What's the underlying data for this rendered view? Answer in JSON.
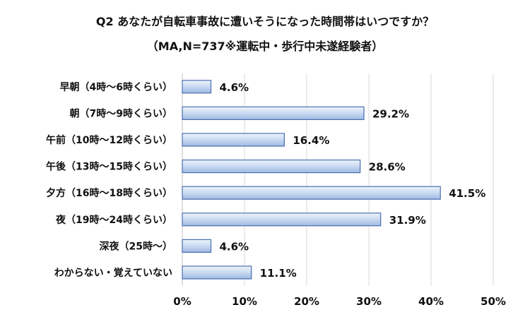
{
  "title_line1": "Q2 あなたが自転車事故に遭いそうになった時間帯はいつですか？",
  "title_line2": "（MA,N=737※運転中・歩行中未遂経験者）",
  "chart_data": {
    "type": "bar",
    "orientation": "horizontal",
    "title": "Q2 あなたが自転車事故に遭いそうになった時間帯はいつですか？",
    "subtitle": "（MA,N=737※運転中・歩行中未遂経験者）",
    "categories": [
      "早朝（4時～6時くらい）",
      "朝（7時～9時くらい）",
      "午前（10時～12時くらい）",
      "午後（13時～15時くらい）",
      "夕方（16時～18時くらい）",
      "夜（19時～24時くらい）",
      "深夜（25時～）",
      "わからない・覚えていない"
    ],
    "values": [
      4.6,
      29.2,
      16.4,
      28.6,
      41.5,
      31.9,
      4.6,
      11.1
    ],
    "value_labels": [
      "4.6%",
      "29.2%",
      "16.4%",
      "28.6%",
      "41.5%",
      "31.9%",
      "4.6%",
      "11.1%"
    ],
    "xlim": [
      0,
      50
    ],
    "x_ticks": [
      "0%",
      "10%",
      "20%",
      "30%",
      "40%",
      "50%"
    ],
    "grid": true,
    "bar_color": "#c8d8f0",
    "bar_edge_color": "#4a6fb0"
  }
}
